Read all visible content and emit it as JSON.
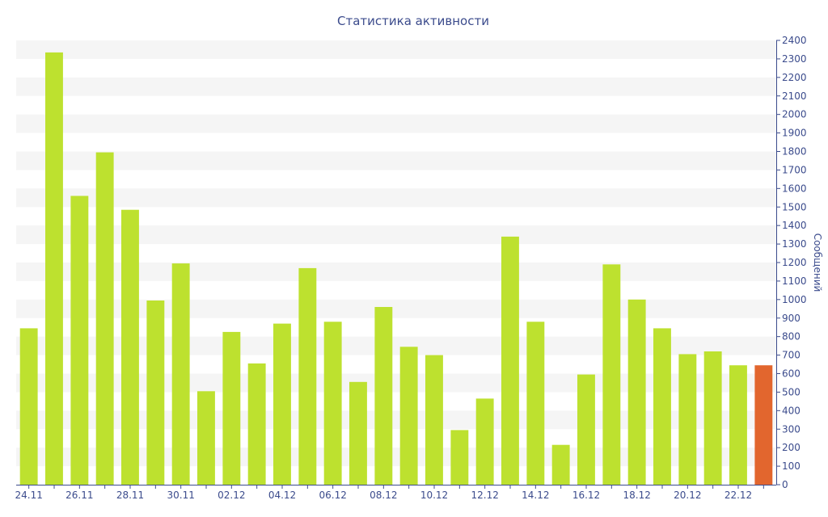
{
  "chart_data": {
    "type": "bar",
    "title": "Статистика активности",
    "ylabel": "Сообщений",
    "xlabel": "",
    "ylim": [
      0,
      2400
    ],
    "y_ticks": [
      0,
      100,
      200,
      300,
      400,
      500,
      600,
      700,
      800,
      900,
      1000,
      1100,
      1200,
      1300,
      1400,
      1500,
      1600,
      1700,
      1800,
      1900,
      2000,
      2100,
      2200,
      2300,
      2400
    ],
    "grid": "horizontal bands",
    "y_axis_position": "right",
    "categories": [
      "24.11",
      "25.11",
      "26.11",
      "27.11",
      "28.11",
      "29.11",
      "30.11",
      "01.12",
      "02.12",
      "03.12",
      "04.12",
      "05.12",
      "06.12",
      "07.12",
      "08.12",
      "09.12",
      "10.12",
      "11.12",
      "12.12",
      "13.12",
      "14.12",
      "15.12",
      "16.12",
      "17.12",
      "18.12",
      "19.12",
      "20.12",
      "21.12",
      "22.12",
      "23.12"
    ],
    "category_labels_shown": [
      "24.11",
      "",
      "26.11",
      "",
      "28.11",
      "",
      "30.11",
      "",
      "02.12",
      "",
      "04.12",
      "",
      "06.12",
      "",
      "08.12",
      "",
      "10.12",
      "",
      "12.12",
      "",
      "14.12",
      "",
      "16.12",
      "",
      "18.12",
      "",
      "20.12",
      "",
      "22.12",
      ""
    ],
    "values": [
      845,
      2335,
      1560,
      1795,
      1485,
      995,
      1195,
      505,
      825,
      655,
      870,
      1170,
      880,
      555,
      960,
      745,
      700,
      295,
      465,
      1340,
      880,
      215,
      595,
      1190,
      1000,
      845,
      705,
      720,
      645,
      645
    ],
    "colors": {
      "bar": "#bde12f",
      "highlight": "#e2662e",
      "axis": "#3b4b8c",
      "band": "#f5f5f5"
    },
    "highlight_index": 29
  }
}
